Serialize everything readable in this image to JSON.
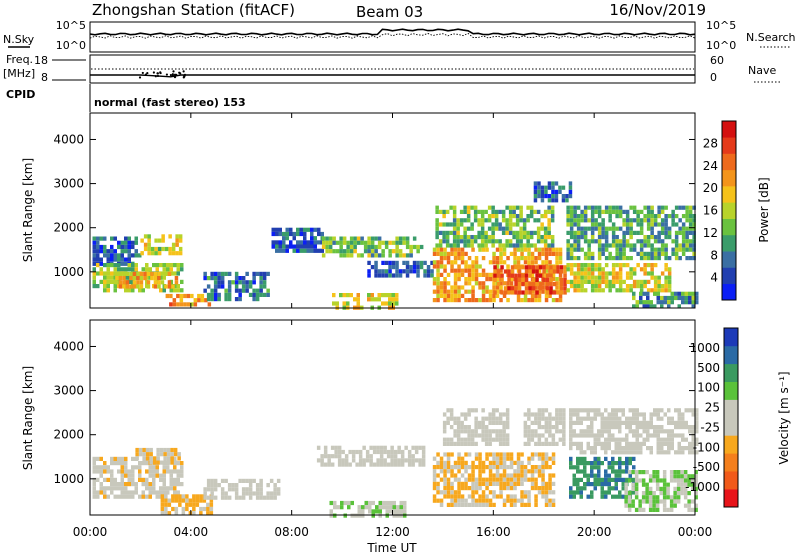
{
  "header": {
    "station": "Zhongshan Station (fitACF)",
    "beam": "Beam 03",
    "date": "16/Nov/2019"
  },
  "summary_panel": {
    "noise_left_label": "N.Sky",
    "noise_right_label": "N.Search",
    "noise_left_ticks": [
      "10^5",
      "10^0"
    ],
    "noise_right_ticks": [
      "10^5",
      "10^0"
    ],
    "freq_label_1": "Freq.",
    "freq_label_2": "[MHz]",
    "freq_ticks": [
      "18",
      "8"
    ],
    "nave_label": "Nave",
    "nave_ticks": [
      "60",
      "0"
    ],
    "cpid_label": "CPID",
    "cpid_text": "normal (fast stereo) 153"
  },
  "chart_data": [
    {
      "type": "heatmap",
      "name": "power",
      "xlabel": "Time UT",
      "ylabel": "Slant Range [km]",
      "xlim": [
        0,
        24
      ],
      "ylim": [
        180,
        4600
      ],
      "x_ticks": [
        "00:00",
        "04:00",
        "08:00",
        "12:00",
        "16:00",
        "20:00",
        "00:00"
      ],
      "y_ticks": [
        1000,
        2000,
        3000,
        4000
      ],
      "colorbar": {
        "label": "Power [dB]",
        "ticks": [
          4,
          8,
          12,
          16,
          20,
          24,
          28
        ],
        "range": [
          0,
          32
        ],
        "colors": [
          "#0b1ff5",
          "#213fb0",
          "#3a6fa3",
          "#3a9c6a",
          "#6ac23f",
          "#b8d32a",
          "#f5c21a",
          "#f3941b",
          "#ee6a1c",
          "#e53a1a",
          "#d41010"
        ]
      },
      "regions": [
        {
          "t0": 0.1,
          "t1": 2.0,
          "r0": 1200,
          "r1": 1800,
          "v": 6
        },
        {
          "t0": 0.1,
          "t1": 3.6,
          "r0": 600,
          "r1": 1200,
          "v": 14
        },
        {
          "t0": 1.0,
          "t1": 3.4,
          "r0": 700,
          "r1": 1000,
          "v": 20
        },
        {
          "t0": 2.0,
          "t1": 3.6,
          "r0": 1450,
          "r1": 1850,
          "v": 16
        },
        {
          "t0": 3.0,
          "t1": 4.8,
          "r0": 220,
          "r1": 500,
          "v": 22
        },
        {
          "t0": 4.5,
          "t1": 7.0,
          "r0": 400,
          "r1": 1000,
          "v": 7
        },
        {
          "t0": 7.2,
          "t1": 9.2,
          "r0": 1500,
          "r1": 2000,
          "v": 6
        },
        {
          "t0": 9.2,
          "t1": 13.1,
          "r0": 1400,
          "r1": 1800,
          "v": 13
        },
        {
          "t0": 9.6,
          "t1": 12.2,
          "r0": 200,
          "r1": 520,
          "v": 17
        },
        {
          "t0": 11.0,
          "t1": 13.5,
          "r0": 950,
          "r1": 1250,
          "v": 5
        },
        {
          "t0": 13.6,
          "t1": 18.6,
          "r0": 400,
          "r1": 1550,
          "v": 21
        },
        {
          "t0": 16.0,
          "t1": 18.8,
          "r0": 500,
          "r1": 1150,
          "v": 26
        },
        {
          "t0": 13.7,
          "t1": 18.4,
          "r0": 1550,
          "r1": 2500,
          "v": 13
        },
        {
          "t0": 17.6,
          "t1": 19.0,
          "r0": 2600,
          "r1": 3050,
          "v": 6
        },
        {
          "t0": 18.9,
          "t1": 24.0,
          "r0": 1300,
          "r1": 2500,
          "v": 11
        },
        {
          "t0": 18.9,
          "t1": 23.0,
          "r0": 550,
          "r1": 1200,
          "v": 17
        },
        {
          "t0": 21.5,
          "t1": 24.0,
          "r0": 250,
          "r1": 550,
          "v": 10
        }
      ]
    },
    {
      "type": "heatmap",
      "name": "velocity",
      "xlabel": "Time UT",
      "ylabel": "Slant Range [km]",
      "xlim": [
        0,
        24
      ],
      "ylim": [
        180,
        4600
      ],
      "x_ticks": [
        "00:00",
        "04:00",
        "08:00",
        "12:00",
        "16:00",
        "20:00",
        "00:00"
      ],
      "y_ticks": [
        1000,
        2000,
        3000,
        4000
      ],
      "colorbar": {
        "label": "Velocity [m s⁻¹]",
        "ticks": [
          "-1000",
          "-500",
          "-100",
          "-25",
          "25",
          "100",
          "500",
          "1000"
        ],
        "range": [
          -1200,
          1200
        ],
        "colors": [
          "#e8141a",
          "#f15a1a",
          "#f47f1c",
          "#f7a81e",
          "#c8c8bc",
          "#c8c8bc",
          "#5ac23a",
          "#3a9a60",
          "#2a6aa5",
          "#1c3ab8"
        ]
      },
      "regions": [
        {
          "t0": 0.1,
          "t1": 3.6,
          "r0": 600,
          "r1": 1500,
          "v": -160
        },
        {
          "t0": 1.8,
          "t1": 3.6,
          "r0": 1350,
          "r1": 1700,
          "v": -220
        },
        {
          "t0": 2.8,
          "t1": 4.8,
          "r0": 220,
          "r1": 650,
          "v": -300
        },
        {
          "t0": 4.5,
          "t1": 7.5,
          "r0": 600,
          "r1": 1000,
          "v": -10
        },
        {
          "t0": 9.0,
          "t1": 13.2,
          "r0": 1350,
          "r1": 1750,
          "v": 10
        },
        {
          "t0": 9.5,
          "t1": 12.5,
          "r0": 200,
          "r1": 500,
          "v": 200
        },
        {
          "t0": 13.6,
          "t1": 18.4,
          "r0": 450,
          "r1": 1600,
          "v": -260
        },
        {
          "t0": 14.0,
          "t1": 16.6,
          "r0": 1800,
          "r1": 2600,
          "v": 0
        },
        {
          "t0": 17.2,
          "t1": 18.8,
          "r0": 1800,
          "r1": 2600,
          "v": 110
        },
        {
          "t0": 19.0,
          "t1": 24.0,
          "r0": 1600,
          "r1": 2600,
          "v": 0
        },
        {
          "t0": 19.0,
          "t1": 21.5,
          "r0": 600,
          "r1": 1500,
          "v": 700
        },
        {
          "t0": 21.2,
          "t1": 24.0,
          "r0": 300,
          "r1": 1200,
          "v": 250
        }
      ]
    }
  ]
}
